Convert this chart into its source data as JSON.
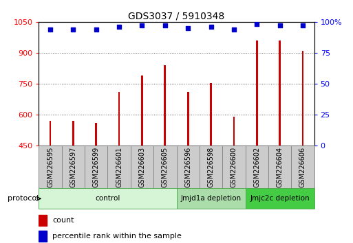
{
  "title": "GDS3037 / 5910348",
  "samples": [
    "GSM226595",
    "GSM226597",
    "GSM226599",
    "GSM226601",
    "GSM226603",
    "GSM226605",
    "GSM226596",
    "GSM226598",
    "GSM226600",
    "GSM226602",
    "GSM226604",
    "GSM226606"
  ],
  "counts": [
    570,
    570,
    560,
    710,
    790,
    840,
    710,
    755,
    590,
    960,
    960,
    910
  ],
  "percentile_ranks": [
    94,
    94,
    94,
    96,
    97,
    97,
    95,
    96,
    94,
    98,
    97,
    97
  ],
  "group_configs": [
    {
      "label": "control",
      "start": 0,
      "end": 6,
      "color": "#d6f5d6",
      "edge": "#55aa55"
    },
    {
      "label": "Jmjd1a depletion",
      "start": 6,
      "end": 9,
      "color": "#aaddaa",
      "edge": "#55aa55"
    },
    {
      "label": "Jmjc2c depletion",
      "start": 9,
      "end": 12,
      "color": "#44cc44",
      "edge": "#55aa55"
    }
  ],
  "bar_color": "#cc0000",
  "dot_color": "#0000cc",
  "ylim_left": [
    450,
    1050
  ],
  "ylim_right": [
    0,
    100
  ],
  "yticks_left": [
    450,
    600,
    750,
    900,
    1050
  ],
  "yticks_right": [
    0,
    25,
    50,
    75,
    100
  ],
  "background_color": "#ffffff",
  "grid_color": "#555555"
}
